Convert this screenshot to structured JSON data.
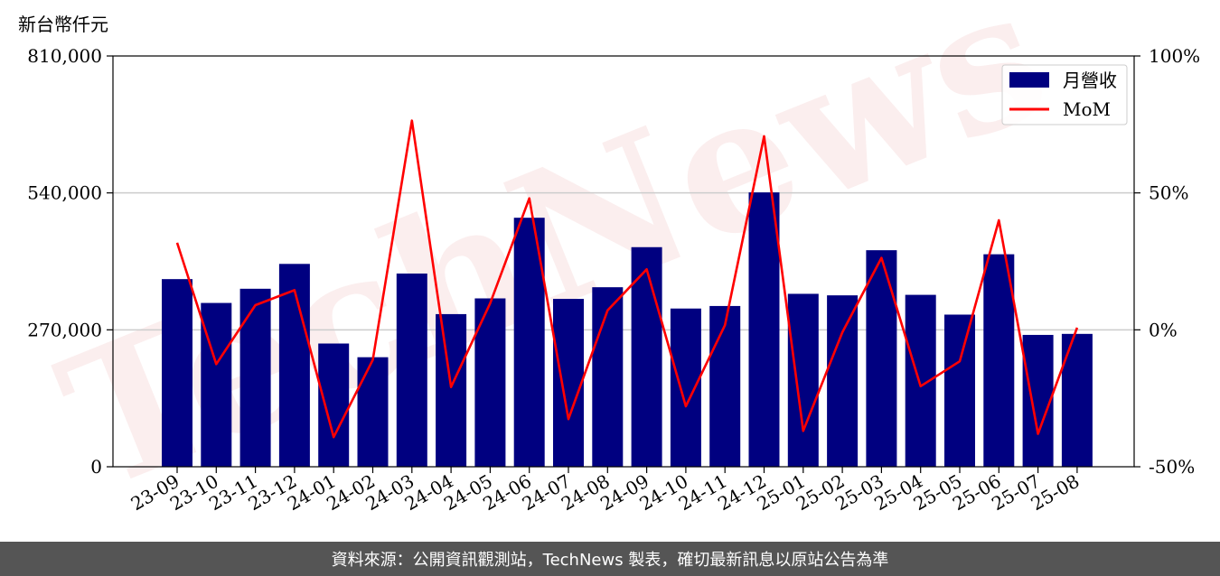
{
  "chart_data": {
    "type": "bar",
    "unit_label": "新台幣仟元",
    "watermark": "TechNews",
    "categories": [
      "23-09",
      "23-10",
      "23-11",
      "23-12",
      "24-01",
      "24-02",
      "24-03",
      "24-04",
      "24-05",
      "24-06",
      "24-07",
      "24-08",
      "24-09",
      "24-10",
      "24-11",
      "24-12",
      "25-01",
      "25-02",
      "25-03",
      "25-04",
      "25-05",
      "25-06",
      "25-07",
      "25-08"
    ],
    "series": [
      {
        "name": "月營收",
        "type": "bar",
        "axis": "left",
        "color": "#000080",
        "values": [
          370000,
          323000,
          351000,
          400000,
          243000,
          216000,
          381000,
          301000,
          332000,
          491000,
          331000,
          354000,
          433000,
          312000,
          317000,
          541000,
          341000,
          338000,
          427000,
          339000,
          300000,
          419000,
          260000,
          262000
        ]
      },
      {
        "name": "MoM",
        "type": "line",
        "axis": "right",
        "color": "#ff0000",
        "values": [
          31.8,
          -12.5,
          9.0,
          14.5,
          -39.2,
          -11.0,
          76.4,
          -20.9,
          9.7,
          48.0,
          -32.6,
          7.1,
          22.1,
          -27.9,
          1.7,
          70.7,
          -36.9,
          -0.9,
          26.3,
          -20.6,
          -11.5,
          40.0,
          -38.0,
          0.8
        ]
      }
    ],
    "y_left": {
      "min": 0,
      "max": 810000,
      "ticks": [
        0,
        270000,
        540000,
        810000
      ],
      "tick_labels": [
        "0",
        "270,000",
        "540,000",
        "810,000"
      ]
    },
    "y_right": {
      "min": -50,
      "max": 100,
      "ticks": [
        -50,
        0,
        50,
        100
      ],
      "tick_labels": [
        "-50%",
        "0%",
        "50%",
        "100%"
      ]
    },
    "grid": "horizontal",
    "legend_position": "top-right"
  },
  "footer": {
    "text": "資料來源：公開資訊觀測站，TechNews 製表，確切最新訊息以原站公告為準"
  }
}
